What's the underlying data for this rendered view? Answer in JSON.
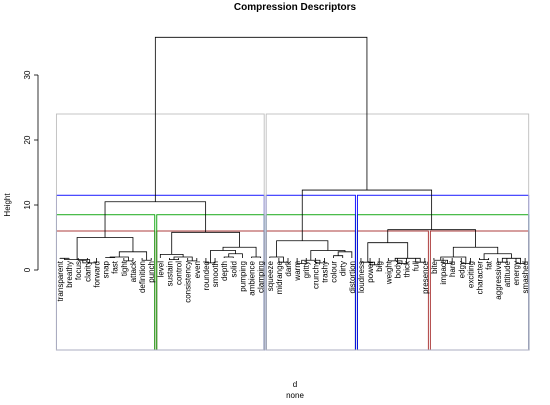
{
  "chart_data": {
    "type": "dendrogram",
    "title": "Compression Descriptors",
    "ylabel": "Height",
    "xlabel": "d",
    "sublabel": "none",
    "ylim": [
      0,
      36
    ],
    "yticks": [
      0,
      10,
      20,
      30
    ],
    "leaves": [
      "transparent",
      "breathy",
      "focus",
      "clarity",
      "forward",
      "snap",
      "fast",
      "tight",
      "attack",
      "definition",
      "punch",
      "level",
      "sustain",
      "control",
      "consistency",
      "even",
      "rounded",
      "smooth",
      "depth",
      "solid",
      "pumping",
      "ambience",
      "clamping",
      "squeeze",
      "midrange",
      "dark",
      "warm",
      "gritty",
      "crunchy",
      "trashy",
      "colour",
      "dirty",
      "distortion",
      "loudness",
      "power",
      "big",
      "weight",
      "body",
      "thick",
      "full",
      "presence",
      "bite",
      "impact",
      "hard",
      "edgy",
      "exciting",
      "character",
      "fat",
      "aggressive",
      "attitude",
      "energy",
      "smashed"
    ],
    "merges": [
      {
        "a": "L0",
        "b": "L1",
        "h": 1.8
      },
      {
        "a": "L2",
        "b": "L3",
        "h": 1.5
      },
      {
        "a": "N1",
        "b": "L4",
        "h": 1.1
      },
      {
        "a": "N0",
        "b": "N2",
        "h": 1.6
      },
      {
        "a": "L5",
        "b": "L6",
        "h": 1.9
      },
      {
        "a": "L7",
        "b": "L8",
        "h": 1.4
      },
      {
        "a": "N4",
        "b": "N5",
        "h": 2.0
      },
      {
        "a": "L9",
        "b": "L10",
        "h": 1.5
      },
      {
        "a": "N6",
        "b": "N7",
        "h": 2.8
      },
      {
        "a": "N3",
        "b": "N8",
        "h": 5.0
      },
      {
        "a": "L12",
        "b": "L13",
        "h": 1.6
      },
      {
        "a": "L14",
        "b": "L15",
        "h": 1.4
      },
      {
        "a": "N10",
        "b": "N11",
        "h": 2.0
      },
      {
        "a": "L11",
        "b": "N12",
        "h": 2.4
      },
      {
        "a": "L16",
        "b": "L17",
        "h": 1.1
      },
      {
        "a": "L18",
        "b": "L19",
        "h": 2.0
      },
      {
        "a": "N15",
        "b": "L20",
        "h": 2.5
      },
      {
        "a": "N14",
        "b": "N16",
        "h": 3.0
      },
      {
        "a": "L21",
        "b": "L22",
        "h": 2.0
      },
      {
        "a": "N17",
        "b": "N18",
        "h": 3.5
      },
      {
        "a": "N13",
        "b": "N19",
        "h": 5.8
      },
      {
        "a": "N9",
        "b": "N20",
        "h": 10.5
      },
      {
        "a": "L24",
        "b": "L25",
        "h": 1.2
      },
      {
        "a": "L23",
        "b": "N22",
        "h": 2.0
      },
      {
        "a": "L26",
        "b": "L27",
        "h": 1.0
      },
      {
        "a": "L28",
        "b": "L29",
        "h": 1.1
      },
      {
        "a": "N24",
        "b": "N25",
        "h": 1.5
      },
      {
        "a": "L30",
        "b": "L31",
        "h": 2.2
      },
      {
        "a": "L32",
        "b": "N27",
        "h": 2.8
      },
      {
        "a": "N26",
        "b": "N28",
        "h": 3.0
      },
      {
        "a": "N23",
        "b": "N29",
        "h": 4.5
      },
      {
        "a": "L34",
        "b": "L35",
        "h": 0.8
      },
      {
        "a": "L33",
        "b": "N31",
        "h": 1.2
      },
      {
        "a": "L37",
        "b": "L38",
        "h": 1.0
      },
      {
        "a": "L36",
        "b": "N33",
        "h": 1.4
      },
      {
        "a": "L39",
        "b": "L40",
        "h": 1.2
      },
      {
        "a": "N34",
        "b": "N35",
        "h": 1.8
      },
      {
        "a": "N32",
        "b": "N36",
        "h": 4.2
      },
      {
        "a": "L42",
        "b": "L43",
        "h": 1.0
      },
      {
        "a": "L41",
        "b": "N38",
        "h": 1.5
      },
      {
        "a": "L44",
        "b": "L45",
        "h": 1.0
      },
      {
        "a": "N39",
        "b": "N40",
        "h": 2.0
      },
      {
        "a": "L46",
        "b": "L47",
        "h": 1.6
      },
      {
        "a": "L48",
        "b": "L49",
        "h": 1.2
      },
      {
        "a": "L50",
        "b": "L51",
        "h": 1.0
      },
      {
        "a": "N43",
        "b": "N44",
        "h": 1.8
      },
      {
        "a": "N42",
        "b": "N45",
        "h": 2.5
      },
      {
        "a": "N41",
        "b": "N46",
        "h": 3.5
      },
      {
        "a": "N37",
        "b": "N47",
        "h": 6.2
      },
      {
        "a": "N30",
        "b": "N48",
        "h": 12.3
      },
      {
        "a": "N21",
        "b": "N49",
        "h": 35.8
      }
    ],
    "cluster_boxes": [
      {
        "color": "#a52a2a",
        "h": 6.0,
        "groups": [
          [
            0,
            10
          ],
          [
            11,
            22
          ],
          [
            23,
            32
          ],
          [
            33,
            40
          ],
          [
            41,
            51
          ]
        ]
      },
      {
        "color": "#00a000",
        "h": 8.5,
        "groups": [
          [
            0,
            10
          ],
          [
            11,
            22
          ],
          [
            23,
            32
          ],
          [
            33,
            51
          ]
        ]
      },
      {
        "color": "#0000ff",
        "h": 11.5,
        "groups": [
          [
            0,
            22
          ],
          [
            23,
            32
          ],
          [
            33,
            51
          ]
        ]
      },
      {
        "color": "#bebebe",
        "h": 24.0,
        "groups": [
          [
            0,
            22
          ],
          [
            23,
            51
          ]
        ]
      }
    ]
  }
}
